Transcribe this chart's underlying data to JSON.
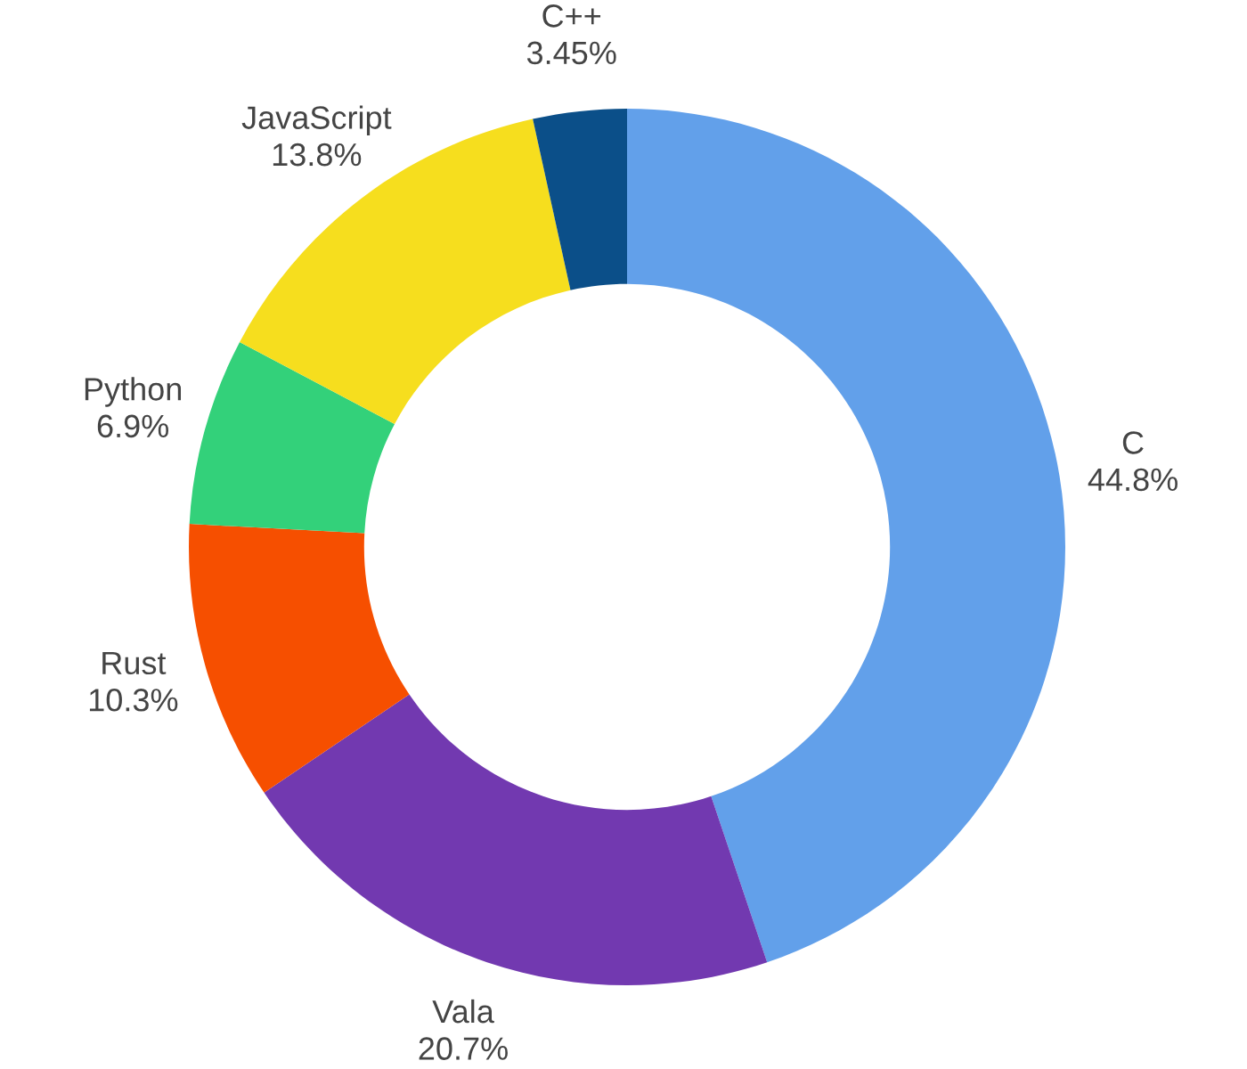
{
  "chart_data": {
    "type": "donut",
    "categories": [
      "C",
      "Vala",
      "Rust",
      "Python",
      "JavaScript",
      "C++"
    ],
    "values": [
      44.8,
      20.7,
      10.3,
      6.9,
      13.8,
      3.45
    ],
    "value_labels": [
      "44.8%",
      "20.7%",
      "10.3%",
      "6.9%",
      "13.8%",
      "3.45%"
    ],
    "colors": [
      "#62a0ea",
      "#7239b0",
      "#f64f00",
      "#33d17a",
      "#f6de1e",
      "#0b4f89"
    ]
  }
}
